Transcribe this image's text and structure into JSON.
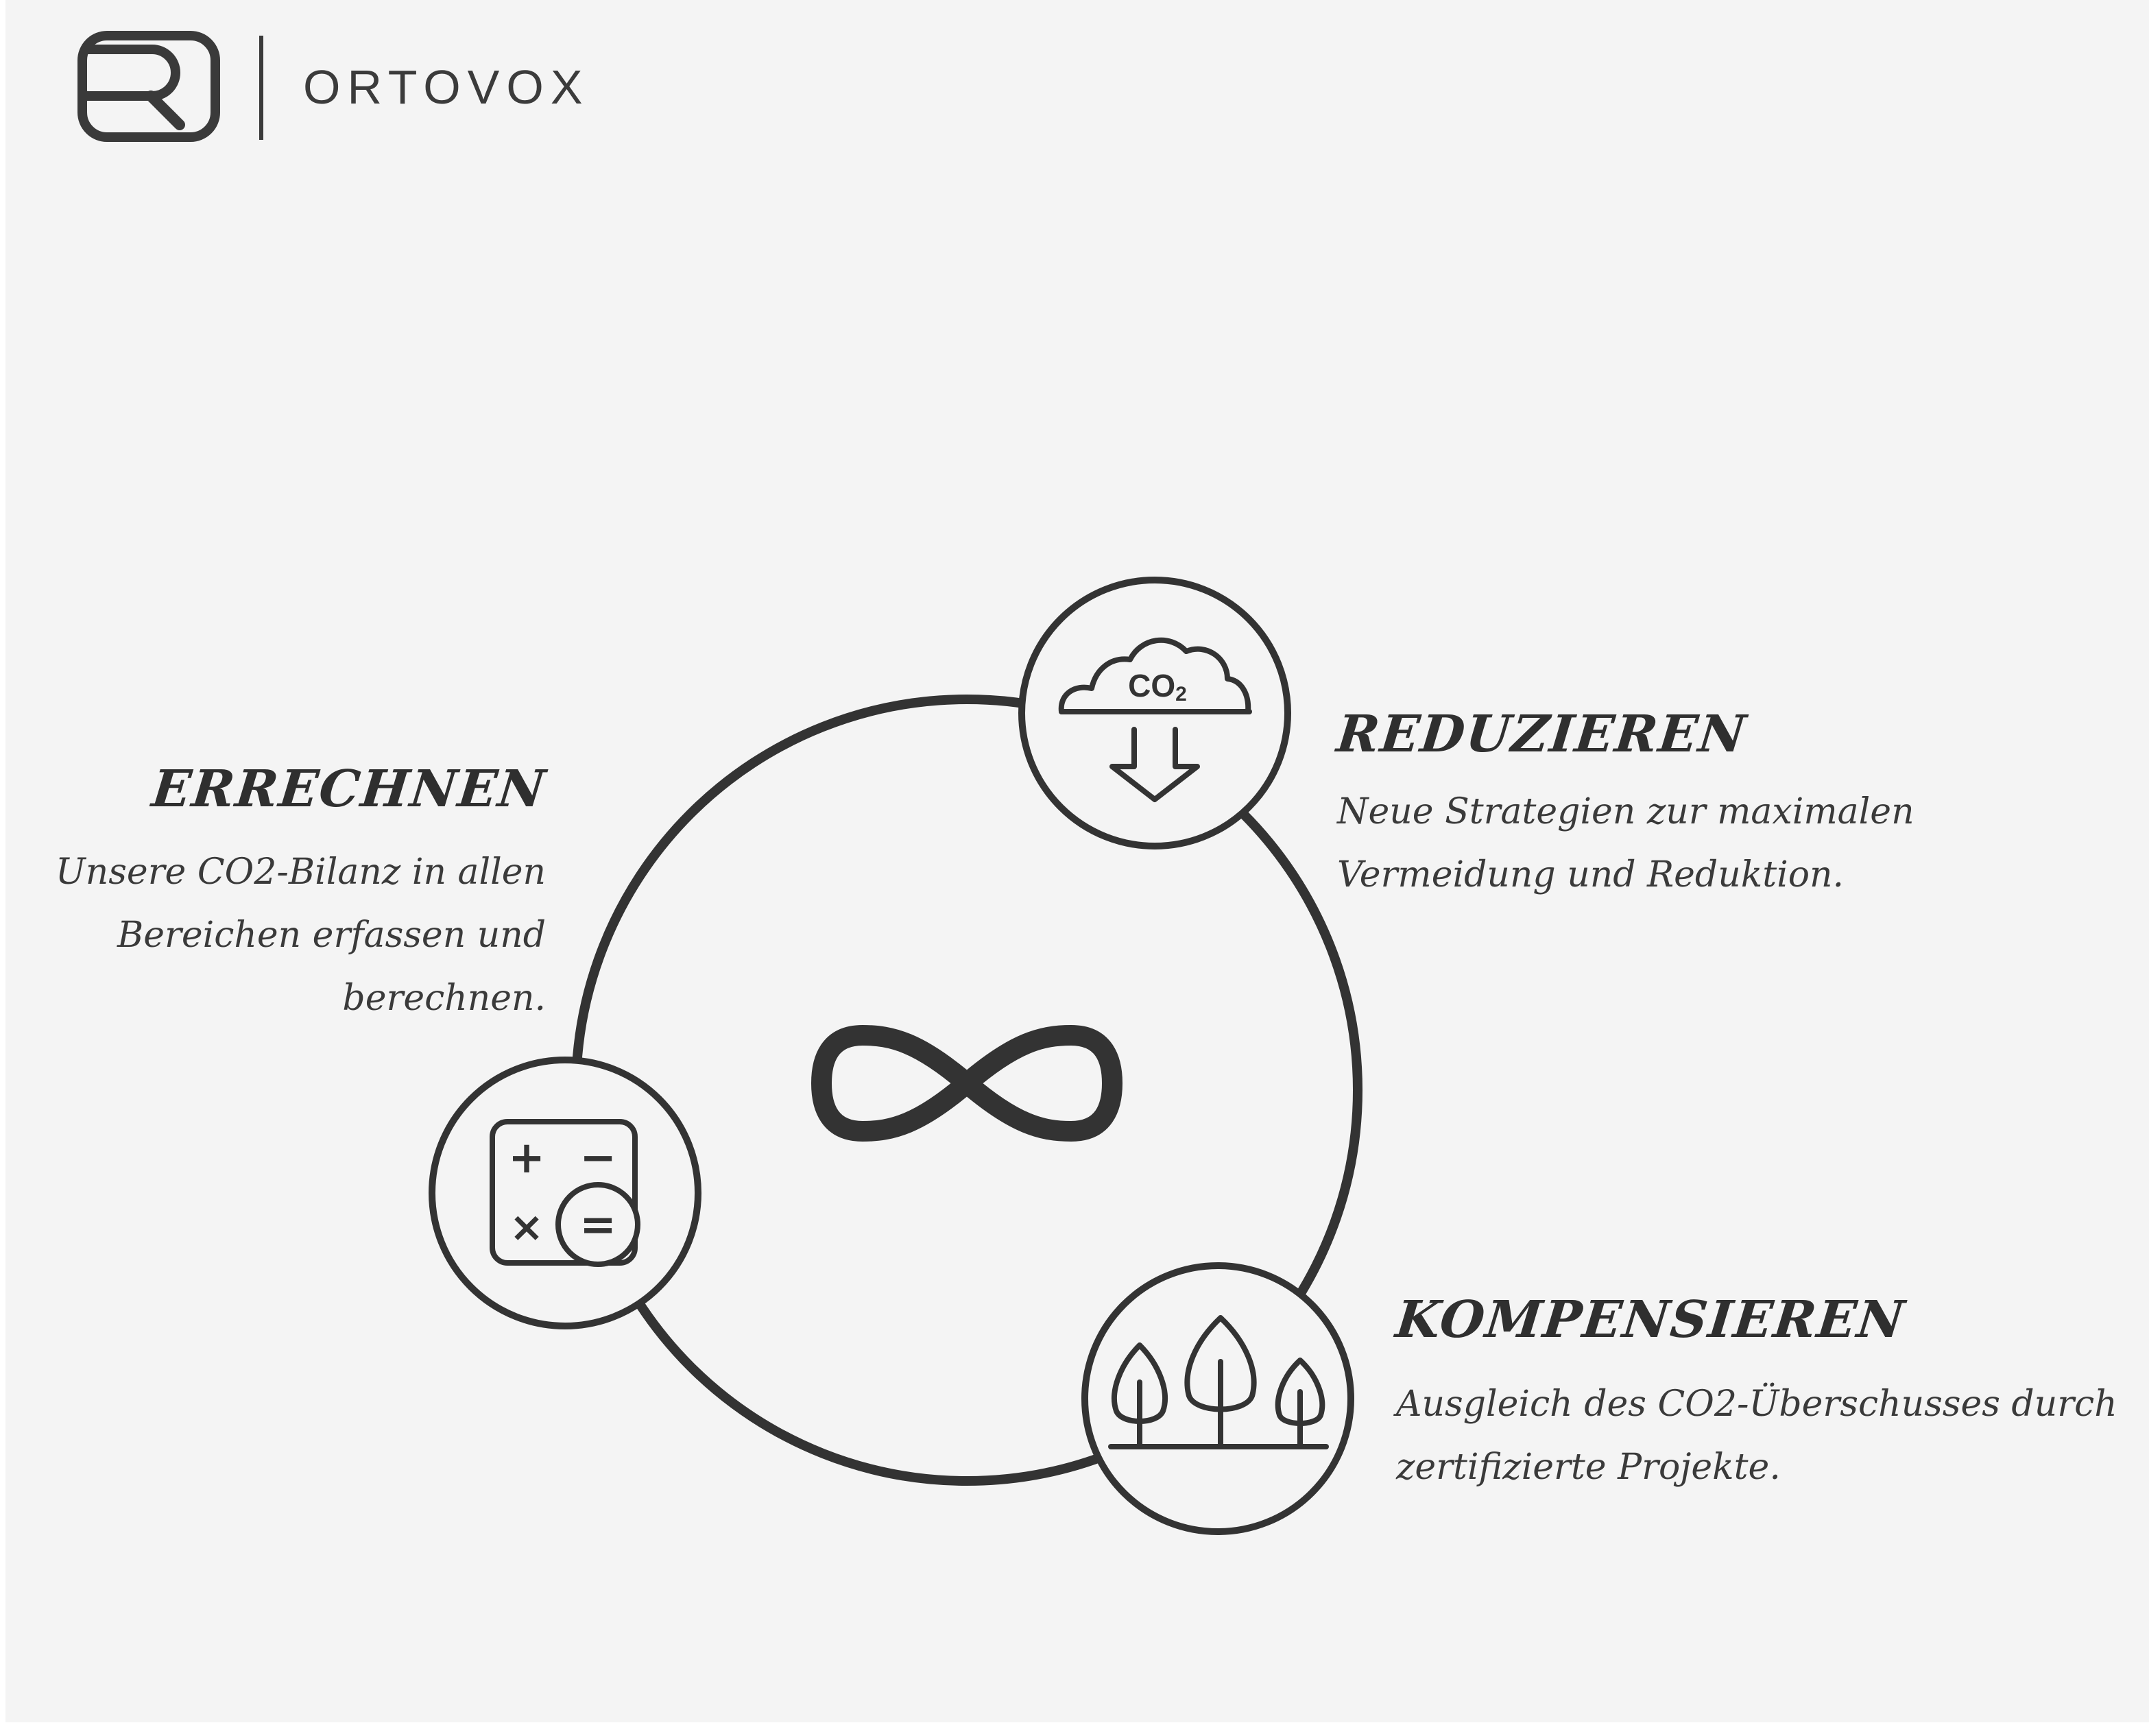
{
  "header": {
    "brand": "ORTOVOX",
    "logo_icon": "ortovox-logo-icon"
  },
  "diagram": {
    "center_icon": "infinity-icon",
    "steps": [
      {
        "heading": "ERRECHNEN",
        "lines": [
          "Unsere CO2-Bilanz in allen",
          "Bereichen erfassen und",
          "berechnen."
        ],
        "icon": "calculator-icon",
        "icon_text": {
          "plus": "+",
          "minus": "−",
          "times": "×",
          "equals": "="
        }
      },
      {
        "heading": "REDUZIEREN",
        "lines": [
          "Neue Strategien zur maximalen",
          "Vermeidung und Reduktion."
        ],
        "icon": "co2-cloud-down-arrow-icon",
        "icon_text": {
          "co": "CO",
          "sub": "2"
        }
      },
      {
        "heading": "KOMPENSIEREN",
        "lines": [
          "Ausgleich des CO2-Überschusses durch",
          "zertifizierte Projekte."
        ],
        "icon": "trees-icon"
      }
    ]
  },
  "colors": {
    "background": "#f4f4f4",
    "ink": "#333333"
  }
}
